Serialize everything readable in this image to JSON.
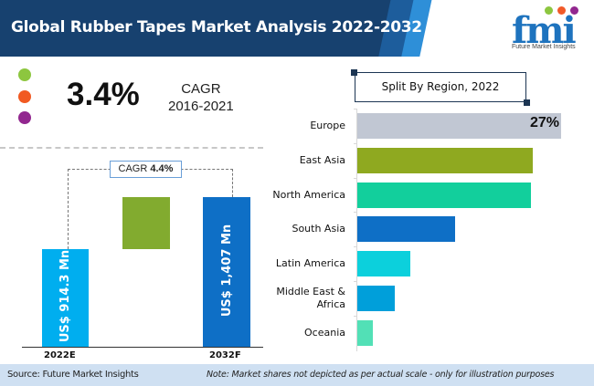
{
  "header": {
    "title": "Global Rubber Tapes Market Analysis 2022-2032",
    "logo": {
      "letters": "fmi",
      "tagline": "Future Market Insights",
      "dot_colors": [
        "#8cc63f",
        "#f15a29",
        "#92278f"
      ]
    }
  },
  "historic_cagr": {
    "value": "3.4%",
    "label_line1": "CAGR",
    "label_line2": "2016-2021",
    "dot_colors": [
      "#8dc63f",
      "#f15a22",
      "#92278f"
    ]
  },
  "chart_data": [
    {
      "type": "bar",
      "title": "",
      "categories": [
        "2022E",
        "2032F"
      ],
      "values": [
        914.3,
        1407
      ],
      "value_labels": [
        "US$ 914.3 Mn",
        "US$ 1,407 Mn"
      ],
      "units": "US$ Mn",
      "annotation": {
        "label": "CAGR",
        "value": "4.4%"
      },
      "colors": [
        "#00aeef",
        "#82ab2f",
        "#0e6fc6"
      ],
      "xlabel": "",
      "ylabel": ""
    },
    {
      "type": "bar",
      "orientation": "horizontal",
      "title": "Split By Region, 2022",
      "categories": [
        "Europe",
        "East Asia",
        "North America",
        "South Asia",
        "Latin America",
        "Middle East & Africa",
        "Oceania"
      ],
      "values": [
        27,
        23.2,
        23,
        13,
        7,
        5,
        2
      ],
      "units": "%",
      "data_labels": [
        "27%",
        "",
        "",
        "",
        "",
        "",
        ""
      ],
      "colors": [
        "#c1c7d3",
        "#8fa920",
        "#12cf9c",
        "#0e6fc6",
        "#0cd0dc",
        "#009fda",
        "#52e0b6"
      ],
      "xlim": [
        0,
        27
      ],
      "grid": false
    }
  ],
  "footer": {
    "source": "Source: Future Market Insights",
    "note": "Note: Market shares not depicted as per actual scale - only for illustration purposes"
  }
}
